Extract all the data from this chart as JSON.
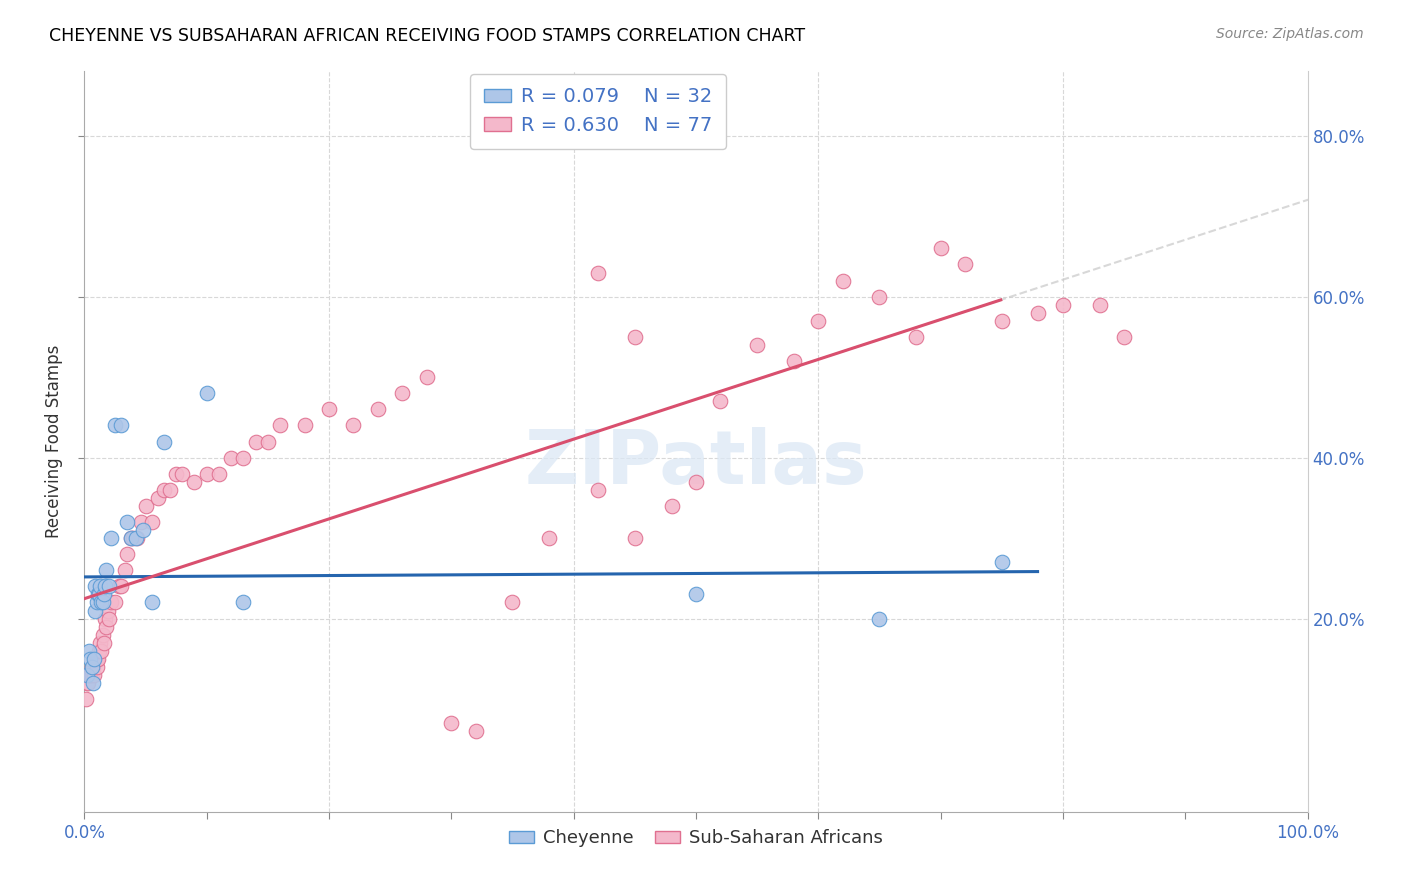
{
  "title": "CHEYENNE VS SUBSAHARAN AFRICAN RECEIVING FOOD STAMPS CORRELATION CHART",
  "source": "Source: ZipAtlas.com",
  "ylabel": "Receiving Food Stamps",
  "xlim": [
    0,
    1
  ],
  "ylim": [
    -0.04,
    0.88
  ],
  "ytick_vals": [
    0.2,
    0.4,
    0.6,
    0.8
  ],
  "ytick_labels": [
    "20.0%",
    "40.0%",
    "60.0%",
    "80.0%"
  ],
  "xtick_vals": [
    0.0,
    0.1,
    0.2,
    0.3,
    0.4,
    0.5,
    0.6,
    0.7,
    0.8,
    0.9,
    1.0
  ],
  "cheyenne_color": "#aec6e8",
  "cheyenne_edge_color": "#5b9bd5",
  "subsaharan_color": "#f4b8cb",
  "subsaharan_edge_color": "#e07090",
  "trend_cheyenne_color": "#2565ae",
  "trend_subsaharan_color": "#d94f6e",
  "trend_dashed_color": "#c8c8c8",
  "legend_r_cheyenne": "R = 0.079",
  "legend_n_cheyenne": "N = 32",
  "legend_r_subsaharan": "R = 0.630",
  "legend_n_subsaharan": "N = 77",
  "watermark": "ZIPatlas",
  "grid_color": "#d8d8d8",
  "cheyenne_x": [
    0.002,
    0.004,
    0.005,
    0.006,
    0.007,
    0.008,
    0.009,
    0.009,
    0.01,
    0.011,
    0.012,
    0.013,
    0.014,
    0.015,
    0.016,
    0.017,
    0.018,
    0.02,
    0.022,
    0.025,
    0.03,
    0.035,
    0.038,
    0.042,
    0.048,
    0.055,
    0.065,
    0.1,
    0.13,
    0.5,
    0.65,
    0.75
  ],
  "cheyenne_y": [
    0.13,
    0.16,
    0.15,
    0.14,
    0.12,
    0.15,
    0.21,
    0.24,
    0.22,
    0.23,
    0.23,
    0.24,
    0.22,
    0.22,
    0.23,
    0.24,
    0.26,
    0.24,
    0.3,
    0.44,
    0.44,
    0.32,
    0.3,
    0.3,
    0.31,
    0.22,
    0.42,
    0.48,
    0.22,
    0.23,
    0.2,
    0.27
  ],
  "subsaharan_x": [
    0.001,
    0.002,
    0.003,
    0.004,
    0.005,
    0.006,
    0.006,
    0.007,
    0.008,
    0.009,
    0.01,
    0.01,
    0.011,
    0.012,
    0.013,
    0.014,
    0.015,
    0.016,
    0.017,
    0.018,
    0.019,
    0.02,
    0.022,
    0.025,
    0.028,
    0.03,
    0.033,
    0.035,
    0.038,
    0.04,
    0.043,
    0.046,
    0.05,
    0.055,
    0.06,
    0.065,
    0.07,
    0.075,
    0.08,
    0.09,
    0.1,
    0.11,
    0.12,
    0.13,
    0.14,
    0.15,
    0.16,
    0.18,
    0.2,
    0.22,
    0.24,
    0.26,
    0.28,
    0.3,
    0.32,
    0.35,
    0.38,
    0.42,
    0.45,
    0.48,
    0.5,
    0.52,
    0.55,
    0.58,
    0.6,
    0.62,
    0.65,
    0.68,
    0.7,
    0.72,
    0.75,
    0.78,
    0.8,
    0.83,
    0.85,
    0.42,
    0.45
  ],
  "subsaharan_y": [
    0.1,
    0.12,
    0.12,
    0.13,
    0.13,
    0.13,
    0.14,
    0.14,
    0.13,
    0.15,
    0.14,
    0.15,
    0.15,
    0.16,
    0.17,
    0.16,
    0.18,
    0.17,
    0.2,
    0.19,
    0.21,
    0.2,
    0.22,
    0.22,
    0.24,
    0.24,
    0.26,
    0.28,
    0.3,
    0.3,
    0.3,
    0.32,
    0.34,
    0.32,
    0.35,
    0.36,
    0.36,
    0.38,
    0.38,
    0.37,
    0.38,
    0.38,
    0.4,
    0.4,
    0.42,
    0.42,
    0.44,
    0.44,
    0.46,
    0.44,
    0.46,
    0.48,
    0.5,
    0.07,
    0.06,
    0.22,
    0.3,
    0.36,
    0.3,
    0.34,
    0.37,
    0.47,
    0.54,
    0.52,
    0.57,
    0.62,
    0.6,
    0.55,
    0.66,
    0.64,
    0.57,
    0.58,
    0.59,
    0.59,
    0.55,
    0.63,
    0.55
  ]
}
